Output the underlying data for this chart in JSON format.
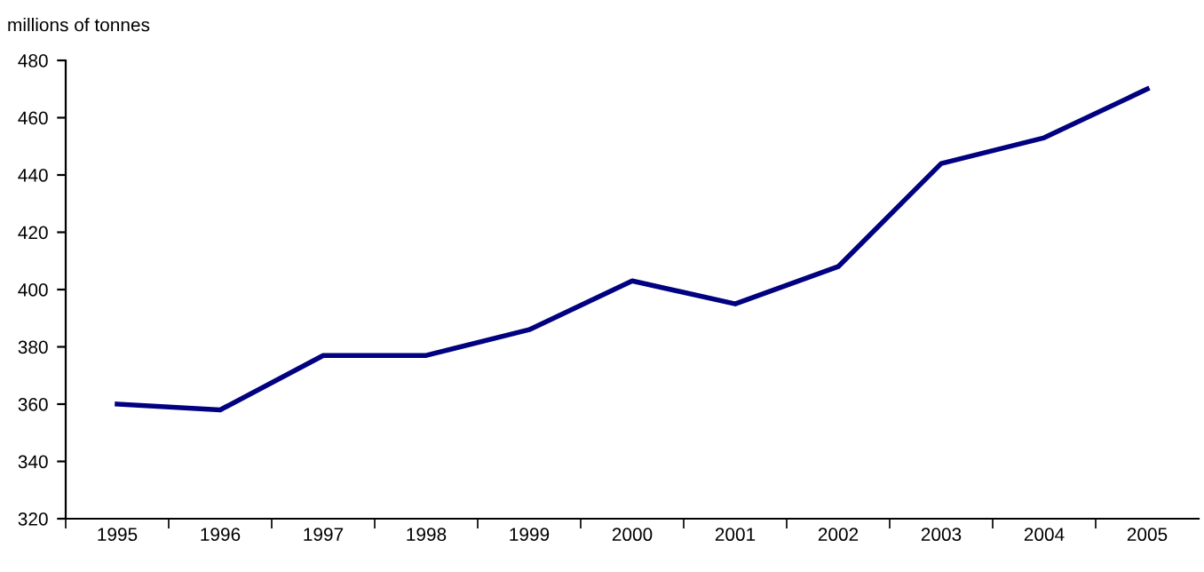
{
  "chart_data": {
    "type": "line",
    "ylabel": "millions of tonnes",
    "categories": [
      "1995",
      "1996",
      "1997",
      "1998",
      "1999",
      "2000",
      "2001",
      "2002",
      "2003",
      "2004",
      "2005"
    ],
    "series": [
      {
        "color": "#000080",
        "values": [
          360,
          358,
          377,
          377,
          386,
          403,
          395,
          408,
          444,
          453,
          470
        ]
      }
    ],
    "ylim": [
      320,
      480
    ],
    "yticks": [
      320,
      340,
      360,
      380,
      400,
      420,
      440,
      460,
      480
    ],
    "grid": false,
    "legend": false,
    "marker": "none",
    "line_style": "solid"
  }
}
